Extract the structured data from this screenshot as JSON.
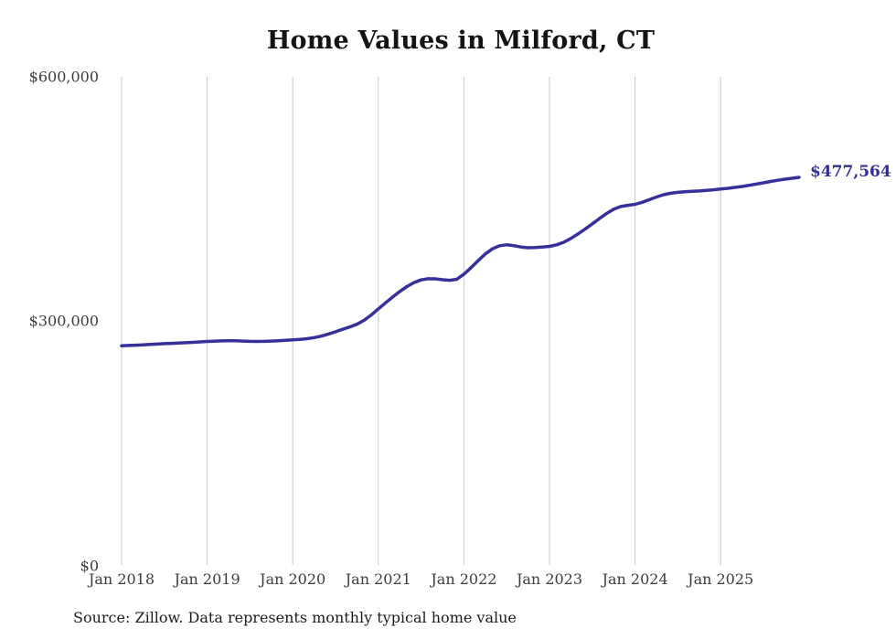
{
  "source_note": "Source: Zillow. Data represents monthly typical home value",
  "colors": {
    "background": "#ffffff",
    "line": "#37309b",
    "end_label_text": "#332e91",
    "grid": "#c9c9c9",
    "title_text": "#141414",
    "axis_text": "#3c3c3c",
    "source_text": "#1c1c1c"
  },
  "chart_data": {
    "type": "line",
    "title": "Home Values in Milford, CT",
    "xlabel": "",
    "ylabel": "",
    "legend_position": "none",
    "grid": "vertical-only",
    "ylim": [
      0,
      600000
    ],
    "x_unit": "month",
    "end_label": "$477,564",
    "end_value": 477564,
    "y_ticks": [
      {
        "value": 600000,
        "label": "$600,000"
      },
      {
        "value": 300000,
        "label": "$300,000"
      },
      {
        "value": 0,
        "label": "$0"
      }
    ],
    "x_tick_labels": [
      "Jan 2018",
      "Jan 2019",
      "Jan 2020",
      "Jan 2021",
      "Jan 2022",
      "Jan 2023",
      "Jan 2024",
      "Jan 2025"
    ],
    "months": [
      "2018-01",
      "2018-02",
      "2018-03",
      "2018-04",
      "2018-05",
      "2018-06",
      "2018-07",
      "2018-08",
      "2018-09",
      "2018-10",
      "2018-11",
      "2018-12",
      "2019-01",
      "2019-02",
      "2019-03",
      "2019-04",
      "2019-05",
      "2019-06",
      "2019-07",
      "2019-08",
      "2019-09",
      "2019-10",
      "2019-11",
      "2019-12",
      "2020-01",
      "2020-02",
      "2020-03",
      "2020-04",
      "2020-05",
      "2020-06",
      "2020-07",
      "2020-08",
      "2020-09",
      "2020-10",
      "2020-11",
      "2020-12",
      "2021-01",
      "2021-02",
      "2021-03",
      "2021-04",
      "2021-05",
      "2021-06",
      "2021-07",
      "2021-08",
      "2021-09",
      "2021-10",
      "2021-11",
      "2021-12",
      "2022-01",
      "2022-02",
      "2022-03",
      "2022-04",
      "2022-05",
      "2022-06",
      "2022-07",
      "2022-08",
      "2022-09",
      "2022-10",
      "2022-11",
      "2022-12",
      "2023-01",
      "2023-02",
      "2023-03",
      "2023-04",
      "2023-05",
      "2023-06",
      "2023-07",
      "2023-08",
      "2023-09",
      "2023-10",
      "2023-11",
      "2023-12",
      "2024-01",
      "2024-02",
      "2024-03",
      "2024-04",
      "2024-05",
      "2024-06",
      "2024-07",
      "2024-08",
      "2024-09",
      "2024-10",
      "2024-11",
      "2024-12",
      "2025-01",
      "2025-02",
      "2025-03",
      "2025-04",
      "2025-05",
      "2025-06",
      "2025-07",
      "2025-08",
      "2025-09",
      "2025-10",
      "2025-11",
      "2025-12"
    ],
    "series": [
      {
        "name": "Typical home value",
        "values": [
          271000,
          271400,
          271800,
          272200,
          272600,
          273100,
          273600,
          274000,
          274400,
          274800,
          275200,
          275800,
          276300,
          276700,
          277000,
          277200,
          277100,
          276800,
          276500,
          276400,
          276500,
          276800,
          277200,
          277700,
          278200,
          278800,
          279700,
          281000,
          282900,
          285400,
          288200,
          291200,
          294200,
          297400,
          302200,
          308700,
          316300,
          323600,
          330700,
          337500,
          343600,
          348500,
          351800,
          353300,
          353100,
          352000,
          351300,
          352600,
          358900,
          366800,
          375500,
          383600,
          389900,
          393700,
          394800,
          393800,
          392100,
          391200,
          391500,
          392200,
          392900,
          394800,
          398000,
          402700,
          408200,
          414100,
          420500,
          427000,
          433200,
          438500,
          441800,
          443300,
          444500,
          447000,
          450200,
          453500,
          456300,
          458100,
          459200,
          459900,
          460400,
          460900,
          461500,
          462300,
          463200,
          464100,
          465200,
          466400,
          467800,
          469300,
          470900,
          472500,
          474000,
          475300,
          476500,
          477564
        ]
      }
    ]
  }
}
